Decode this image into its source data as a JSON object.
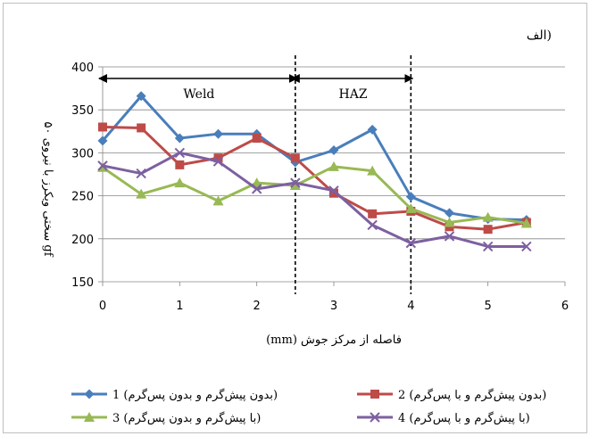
{
  "chart_data": {
    "type": "line",
    "panel_label": "الف)",
    "ylabel": "سختی ویکرز با نیروی ۵۰ gf",
    "xlabel": "فاصله از مرکز جوش (mm)",
    "xlim": [
      0,
      6
    ],
    "ylim": [
      150,
      400
    ],
    "x_ticks": [
      0,
      1,
      2,
      3,
      4,
      5,
      6
    ],
    "y_ticks": [
      150,
      200,
      250,
      300,
      350,
      400
    ],
    "grid": "horizontal",
    "legend_position": "bottom",
    "zones": [
      {
        "label": "Weld",
        "from": 0,
        "to": 2.5
      },
      {
        "label": "HAZ",
        "from": 2.5,
        "to": 4
      }
    ],
    "boundaries": [
      2.5,
      4
    ],
    "series": [
      {
        "name": "1 (بدون پیش‌گرم و بدون پس‌گرم)",
        "color": "#4a7ebb",
        "marker": "diamond",
        "points": [
          [
            0,
            314
          ],
          [
            0.5,
            366
          ],
          [
            1,
            317
          ],
          [
            1.5,
            322
          ],
          [
            2,
            322
          ],
          [
            2.5,
            289
          ],
          [
            3,
            303
          ],
          [
            3.5,
            327
          ],
          [
            4,
            249
          ],
          [
            4.5,
            230
          ],
          [
            5,
            223
          ],
          [
            5.5,
            222
          ]
        ]
      },
      {
        "name": "2 (بدون پیش‌گرم و با پس‌گرم)",
        "color": "#be4b48",
        "marker": "square",
        "points": [
          [
            0,
            330
          ],
          [
            0.5,
            329
          ],
          [
            1,
            286
          ],
          [
            1.5,
            294
          ],
          [
            2,
            317
          ],
          [
            2.5,
            294
          ],
          [
            3,
            253
          ],
          [
            3.5,
            229
          ],
          [
            4,
            232
          ],
          [
            4.5,
            214
          ],
          [
            5,
            211
          ],
          [
            5.5,
            219
          ]
        ]
      },
      {
        "name": "3 (با پیش‌گرم و بدون پس‌گرم)",
        "color": "#98b954",
        "marker": "triangle",
        "points": [
          [
            0,
            283
          ],
          [
            0.5,
            252
          ],
          [
            1,
            265
          ],
          [
            1.5,
            244
          ],
          [
            2,
            265
          ],
          [
            2.5,
            262
          ],
          [
            3,
            284
          ],
          [
            3.5,
            279
          ],
          [
            4,
            235
          ],
          [
            4.5,
            219
          ],
          [
            5,
            225
          ],
          [
            5.5,
            218
          ]
        ]
      },
      {
        "name": "4 (با پیش‌گرم و با پس‌گرم)",
        "color": "#7d60a0",
        "marker": "x",
        "points": [
          [
            0,
            285
          ],
          [
            0.5,
            276
          ],
          [
            1,
            300
          ],
          [
            1.5,
            290
          ],
          [
            2,
            258
          ],
          [
            2.5,
            265
          ],
          [
            3,
            256
          ],
          [
            3.5,
            216
          ],
          [
            4,
            195
          ],
          [
            4.5,
            203
          ],
          [
            5,
            191
          ],
          [
            5.5,
            191
          ]
        ]
      }
    ]
  }
}
